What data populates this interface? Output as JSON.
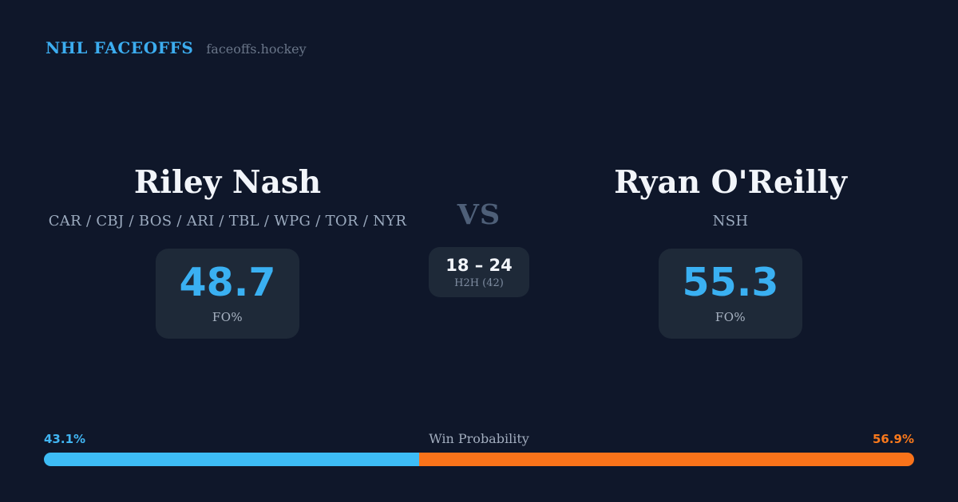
{
  "header": {
    "brand": "NHL FACEOFFS",
    "site": "faceoffs.hockey"
  },
  "matchup": {
    "vs_label": "VS",
    "h2h": {
      "score": "18 – 24",
      "label": "H2H (42)"
    },
    "players": [
      {
        "name": "Riley Nash",
        "teams": "CAR / CBJ / BOS / ARI / TBL / WPG / TOR / NYR",
        "fo_value": "48.7",
        "fo_label": "FO%"
      },
      {
        "name": "Ryan O'Reilly",
        "teams": "NSH",
        "fo_value": "55.3",
        "fo_label": "FO%"
      }
    ]
  },
  "win_probability": {
    "label": "Win Probability",
    "left_pct": "43.1%",
    "right_pct": "56.9%",
    "left_value": 43.1,
    "right_value": 56.9
  },
  "colors": {
    "background": "#0f172a",
    "card": "#1e2938",
    "accent_blue": "#3ab0f2",
    "accent_orange": "#f9731a",
    "text_primary": "#f2f5fa",
    "text_muted": "#9cabbf"
  },
  "chart_data": {
    "type": "bar",
    "title": "Win Probability",
    "categories": [
      "Riley Nash",
      "Ryan O'Reilly"
    ],
    "values": [
      43.1,
      56.9
    ],
    "unit": "%",
    "xlim": [
      0,
      100
    ],
    "colors": [
      "#3dbcf5",
      "#f9731a"
    ],
    "legend_position": "none",
    "related_stats": {
      "faceoff_pct": {
        "Riley Nash": 48.7,
        "Ryan O'Reilly": 55.3
      },
      "head_to_head": {
        "Riley Nash": 18,
        "Ryan O'Reilly": 24,
        "total": 42
      }
    }
  }
}
